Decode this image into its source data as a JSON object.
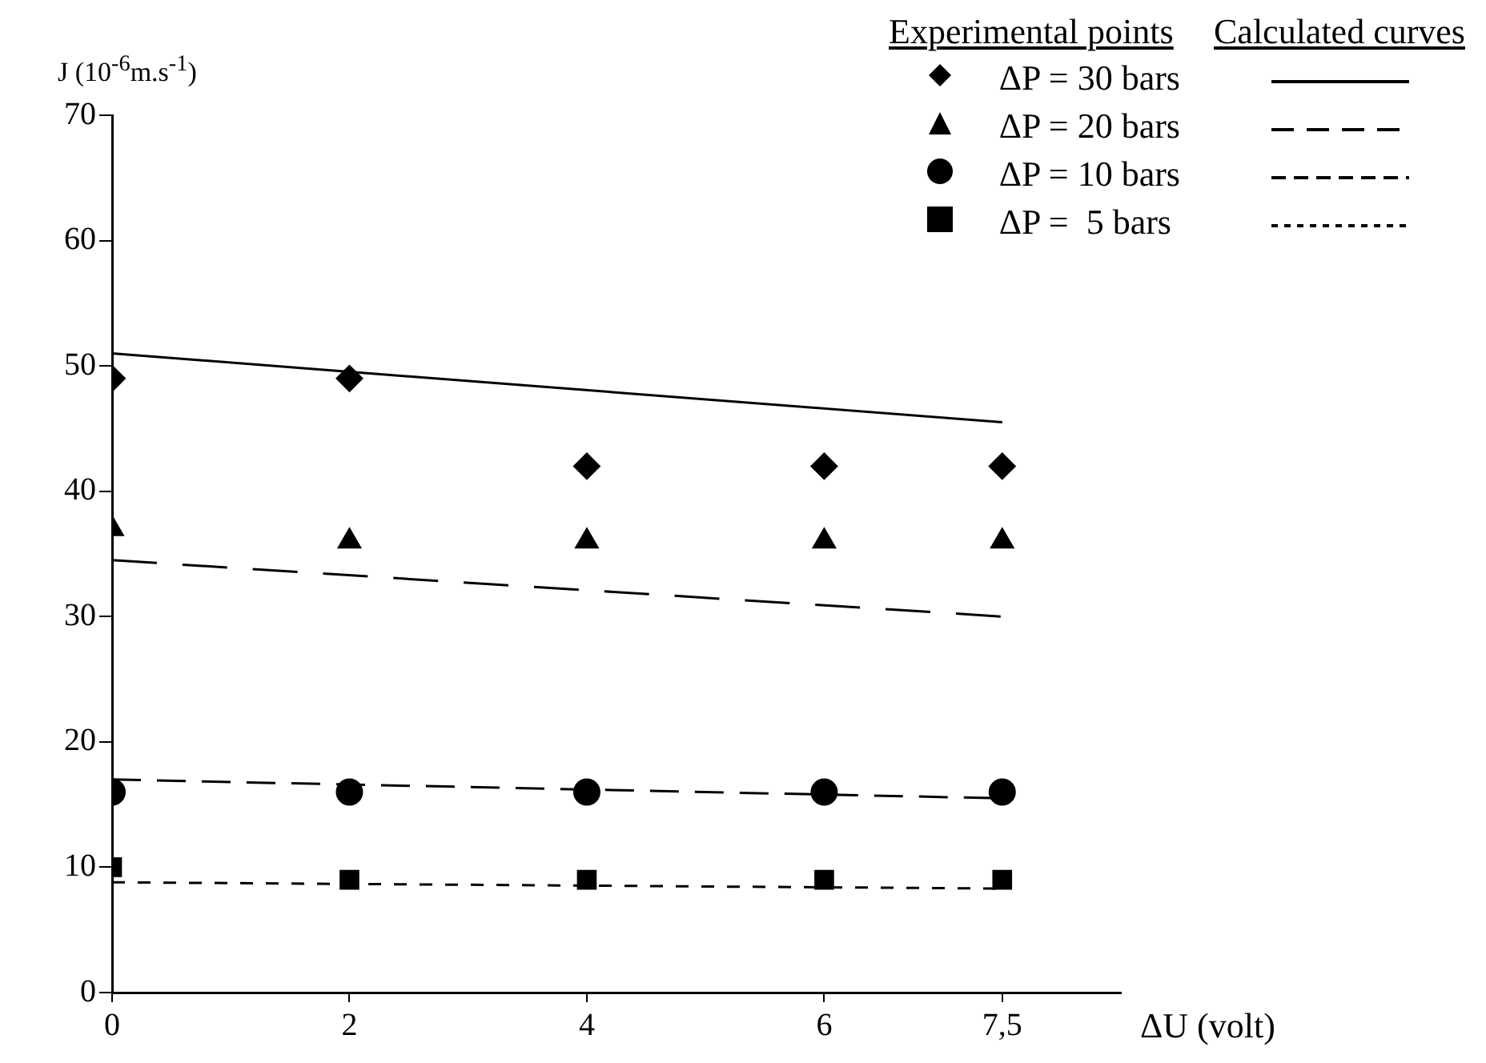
{
  "chart_data": {
    "type": "scatter",
    "ylabel": "J (10$^{-6}$m.s$^{-1}$)",
    "xlabel": "ΔU (volt)",
    "xlim": [
      0,
      8.5
    ],
    "xticks": [
      0,
      2,
      4,
      6,
      {
        "value": 7.5,
        "label": "7,5"
      }
    ],
    "ylim": [
      0,
      70
    ],
    "yticks": [
      0,
      10,
      20,
      30,
      40,
      50,
      60,
      70
    ],
    "grid": false,
    "legend": "top right",
    "annotations": [
      "Experimental points",
      "Calculated curves"
    ],
    "series": [
      {
        "name": "ΔP = 30 bars",
        "type": "scatter",
        "marker": "diamond",
        "color": "#000000",
        "x": [
          0,
          2,
          4,
          6,
          7.5
        ],
        "values": [
          49,
          49,
          42,
          42,
          42
        ]
      },
      {
        "name": "ΔP = 20 bars",
        "type": "scatter",
        "marker": "triangle",
        "color": "#000000",
        "x": [
          0,
          2,
          4,
          6,
          7.5
        ],
        "values": [
          37,
          36,
          36,
          36,
          36
        ]
      },
      {
        "name": "ΔP = 10 bars",
        "type": "scatter",
        "marker": "circle",
        "color": "#000000",
        "x": [
          0,
          2,
          4,
          6,
          7.5
        ],
        "values": [
          16,
          16,
          16,
          16,
          16
        ]
      },
      {
        "name": "ΔP =  5 bars",
        "type": "scatter",
        "marker": "square",
        "color": "#000000",
        "x": [
          0,
          2,
          4,
          6,
          7.5
        ],
        "values": [
          10,
          9,
          9,
          9,
          9
        ]
      },
      {
        "type": "line",
        "marker": "none",
        "line_style": "solid",
        "color": "#000000",
        "x": [
          0,
          7.5
        ],
        "values": [
          51,
          45.5
        ]
      },
      {
        "type": "line",
        "marker": "none",
        "line_style": "dashed",
        "color": "#000000",
        "x": [
          0,
          7.5
        ],
        "values": [
          34.5,
          30
        ]
      },
      {
        "type": "line",
        "marker": "none",
        "line_style": "dashed",
        "color": "#000000",
        "x": [
          0,
          7.5
        ],
        "values": [
          17,
          15.5
        ]
      },
      {
        "type": "line",
        "marker": "none",
        "line_style": "dashed",
        "color": "#000000",
        "x": [
          0,
          7.5
        ],
        "values": [
          8.8,
          8.3
        ]
      }
    ]
  }
}
